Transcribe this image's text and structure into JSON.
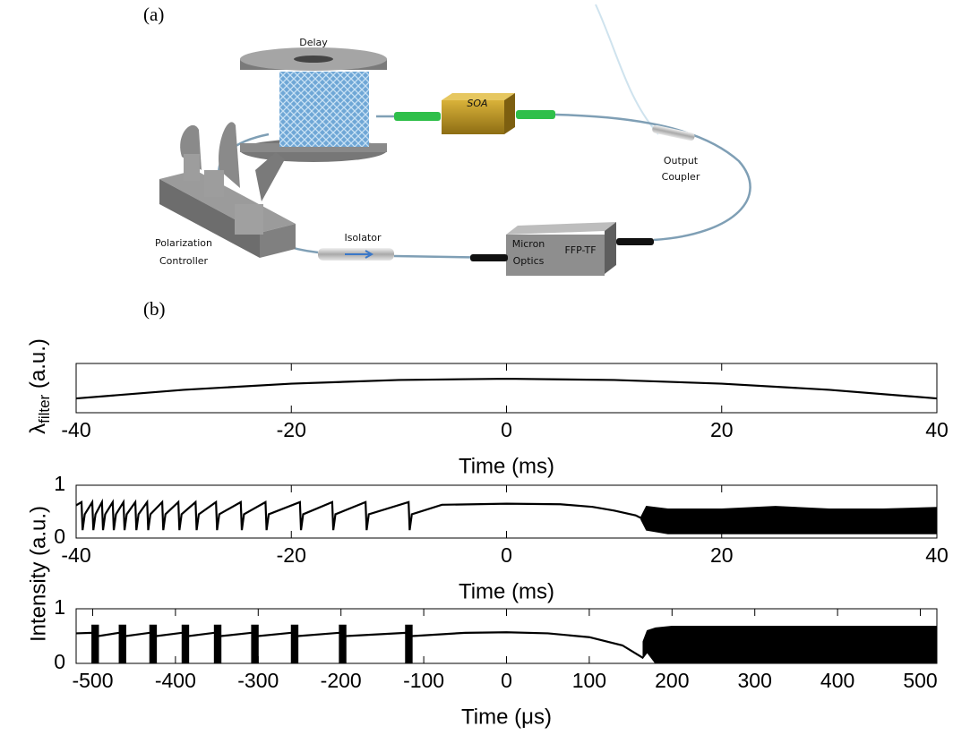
{
  "panels": {
    "a": "(a)",
    "b": "(b)"
  },
  "diagram": {
    "delay": "Delay",
    "soa": "SOA",
    "output_coupler": [
      "Output",
      "Coupler"
    ],
    "isolator": "Isolator",
    "polarization_controller": [
      "Polarization",
      "Controller"
    ],
    "filter_brand": [
      "Micron",
      "Optics"
    ],
    "filter": "FFP-TF"
  },
  "chart_data": [
    {
      "type": "line",
      "ylabel": {
        "main": "λ",
        "sub": "filter",
        "unit": " (a.u.)"
      },
      "xlabel": "Time (ms)",
      "xlim": [
        -40,
        40
      ],
      "xticks": [
        -40,
        -20,
        0,
        20,
        40
      ],
      "ylim": [
        0,
        1
      ],
      "series": [
        {
          "color": "#000000",
          "x": [
            -40,
            -30,
            -20,
            -10,
            0,
            10,
            20,
            30,
            40
          ],
          "values": [
            0.29,
            0.465,
            0.59,
            0.665,
            0.69,
            0.665,
            0.59,
            0.465,
            0.29
          ]
        }
      ],
      "bands": []
    },
    {
      "type": "line",
      "ylabel": "Intensity (a.u.)",
      "xlabel": "Time (ms)",
      "xlim": [
        -40,
        40
      ],
      "xticks": [
        -40,
        -20,
        0,
        20,
        40
      ],
      "ylim": [
        0,
        1
      ],
      "yticks": [
        0,
        1
      ],
      "series": [
        {
          "color": "#000000",
          "x": [
            -40,
            -39.5,
            -39.4,
            -39.2,
            -38.5,
            -38.4,
            -38.2,
            -37.6,
            -37.5,
            -37.3,
            -36.6,
            -36.5,
            -36.3,
            -35.6,
            -35.5,
            -35.3,
            -34.5,
            -34.4,
            -34.2,
            -33.4,
            -33.3,
            -33.1,
            -32,
            -31.9,
            -31.7,
            -30.5,
            -30.4,
            -30.2,
            -28.9,
            -28.8,
            -28.6,
            -27,
            -26.9,
            -26.7,
            -24.7,
            -24.6,
            -24.4,
            -22.4,
            -22.3,
            -22.1,
            -19.2,
            -19.1,
            -18.9,
            -16.2,
            -16.1,
            -15.9,
            -13.1,
            -13,
            -12.8,
            -9.1,
            -9,
            -8.8,
            -6,
            0,
            5,
            8,
            10,
            12,
            12.5
          ],
          "values": [
            0.62,
            0.68,
            0.15,
            0.45,
            0.68,
            0.15,
            0.45,
            0.68,
            0.15,
            0.45,
            0.68,
            0.15,
            0.45,
            0.68,
            0.15,
            0.45,
            0.68,
            0.15,
            0.45,
            0.68,
            0.15,
            0.45,
            0.68,
            0.15,
            0.45,
            0.68,
            0.15,
            0.45,
            0.68,
            0.15,
            0.45,
            0.68,
            0.15,
            0.45,
            0.68,
            0.15,
            0.45,
            0.68,
            0.15,
            0.45,
            0.68,
            0.15,
            0.45,
            0.68,
            0.15,
            0.45,
            0.68,
            0.15,
            0.45,
            0.68,
            0.15,
            0.45,
            0.63,
            0.65,
            0.64,
            0.59,
            0.52,
            0.43,
            0.38
          ]
        }
      ],
      "bands": [
        {
          "color": "#000000",
          "x": [
            12.5,
            13,
            15,
            20,
            25,
            30,
            35,
            40
          ],
          "lower": [
            0.35,
            0.15,
            0.08,
            0.08,
            0.08,
            0.08,
            0.08,
            0.08
          ],
          "upper": [
            0.4,
            0.6,
            0.55,
            0.55,
            0.6,
            0.55,
            0.55,
            0.58
          ]
        }
      ]
    },
    {
      "type": "line",
      "xlabel": "Time (μs)",
      "xlim": [
        -520,
        520
      ],
      "xticks": [
        -500,
        -400,
        -300,
        -200,
        -100,
        0,
        100,
        200,
        300,
        400,
        500
      ],
      "ylim": [
        0,
        1
      ],
      "yticks": [
        0,
        1
      ],
      "series": [
        {
          "color": "#000000",
          "x": [
            -520,
            -501,
            -493,
            -468,
            -460,
            -431,
            -423,
            -392,
            -384,
            -353,
            -345,
            -308,
            -300,
            -260,
            -252,
            -202,
            -194,
            -122,
            -114,
            -50,
            0,
            50,
            100,
            140,
            165
          ],
          "values": [
            0.55,
            0.56,
            0.5,
            0.56,
            0.5,
            0.56,
            0.5,
            0.56,
            0.5,
            0.56,
            0.5,
            0.56,
            0.5,
            0.56,
            0.5,
            0.56,
            0.5,
            0.56,
            0.5,
            0.56,
            0.57,
            0.55,
            0.48,
            0.33,
            0.1
          ]
        }
      ],
      "bands": [
        {
          "color": "#000000",
          "x": [
            -501,
            -493
          ],
          "lower": [
            0,
            0
          ],
          "upper": [
            0.7,
            0.7
          ]
        },
        {
          "color": "#000000",
          "x": [
            -468,
            -460
          ],
          "lower": [
            0,
            0
          ],
          "upper": [
            0.7,
            0.7
          ]
        },
        {
          "color": "#000000",
          "x": [
            -431,
            -423
          ],
          "lower": [
            0,
            0
          ],
          "upper": [
            0.7,
            0.7
          ]
        },
        {
          "color": "#000000",
          "x": [
            -392,
            -384
          ],
          "lower": [
            0,
            0
          ],
          "upper": [
            0.7,
            0.7
          ]
        },
        {
          "color": "#000000",
          "x": [
            -353,
            -345
          ],
          "lower": [
            0,
            0
          ],
          "upper": [
            0.7,
            0.7
          ]
        },
        {
          "color": "#000000",
          "x": [
            -308,
            -300
          ],
          "lower": [
            0,
            0
          ],
          "upper": [
            0.7,
            0.7
          ]
        },
        {
          "color": "#000000",
          "x": [
            -260,
            -252
          ],
          "lower": [
            0,
            0
          ],
          "upper": [
            0.7,
            0.7
          ]
        },
        {
          "color": "#000000",
          "x": [
            -202,
            -194
          ],
          "lower": [
            0,
            0
          ],
          "upper": [
            0.7,
            0.7
          ]
        },
        {
          "color": "#000000",
          "x": [
            -122,
            -114
          ],
          "lower": [
            0,
            0
          ],
          "upper": [
            0.7,
            0.7
          ]
        },
        {
          "color": "#000000",
          "x": [
            165,
            170,
            180,
            200,
            300,
            400,
            520
          ],
          "lower": [
            0.1,
            0.2,
            0,
            0,
            0,
            0,
            0
          ],
          "upper": [
            0.4,
            0.6,
            0.65,
            0.68,
            0.68,
            0.68,
            0.68
          ]
        }
      ]
    }
  ]
}
